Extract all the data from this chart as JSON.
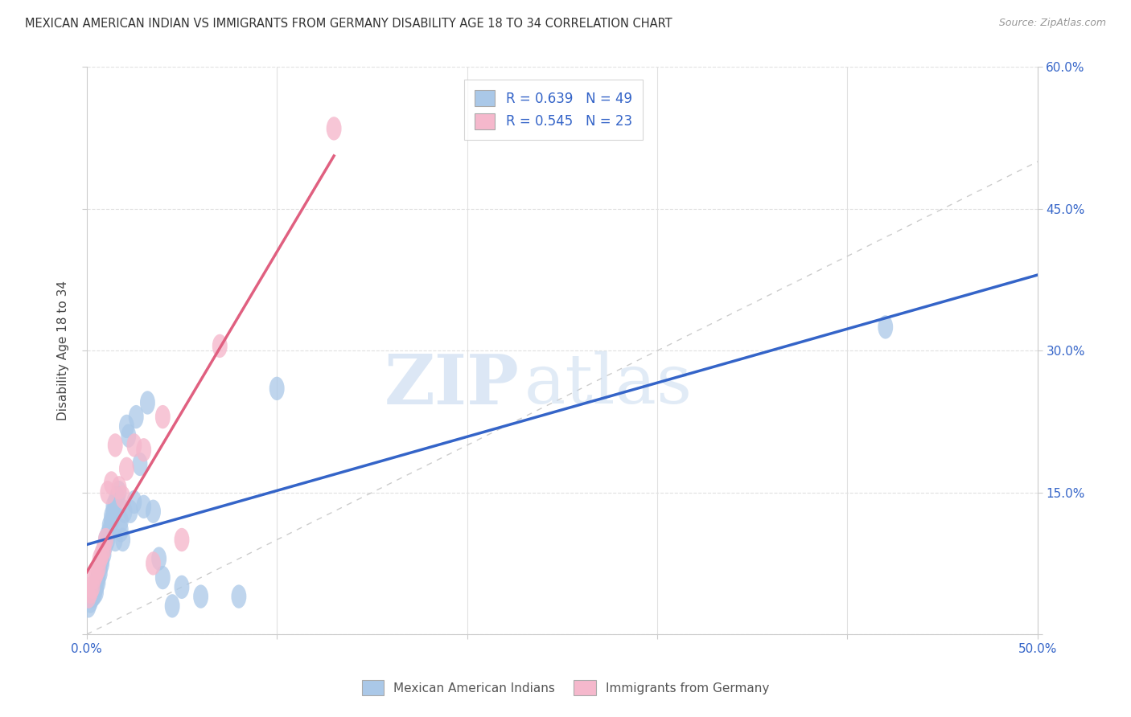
{
  "title": "MEXICAN AMERICAN INDIAN VS IMMIGRANTS FROM GERMANY DISABILITY AGE 18 TO 34 CORRELATION CHART",
  "source": "Source: ZipAtlas.com",
  "ylabel": "Disability Age 18 to 34",
  "xlim": [
    0.0,
    0.5
  ],
  "ylim": [
    0.0,
    0.6
  ],
  "xticks": [
    0.0,
    0.1,
    0.2,
    0.3,
    0.4,
    0.5
  ],
  "xticklabels": [
    "0.0%",
    "",
    "",
    "",
    "",
    "50.0%"
  ],
  "yticks": [
    0.0,
    0.15,
    0.3,
    0.45,
    0.6
  ],
  "yticklabels": [
    "",
    "15.0%",
    "30.0%",
    "45.0%",
    "60.0%"
  ],
  "blue_R": 0.639,
  "blue_N": 49,
  "pink_R": 0.545,
  "pink_N": 23,
  "blue_color": "#aac8e8",
  "pink_color": "#f5b8cc",
  "blue_line_color": "#3464c8",
  "pink_line_color": "#e06080",
  "ref_line_color": "#c8c8c8",
  "legend_label_blue": "Mexican American Indians",
  "legend_label_pink": "Immigrants from Germany",
  "blue_scatter_x": [
    0.001,
    0.002,
    0.003,
    0.004,
    0.005,
    0.005,
    0.006,
    0.006,
    0.007,
    0.007,
    0.008,
    0.008,
    0.009,
    0.009,
    0.01,
    0.01,
    0.011,
    0.011,
    0.012,
    0.012,
    0.013,
    0.013,
    0.014,
    0.014,
    0.015,
    0.015,
    0.016,
    0.017,
    0.018,
    0.018,
    0.019,
    0.02,
    0.021,
    0.022,
    0.023,
    0.025,
    0.026,
    0.028,
    0.03,
    0.032,
    0.035,
    0.038,
    0.04,
    0.045,
    0.05,
    0.06,
    0.08,
    0.1,
    0.42
  ],
  "blue_scatter_y": [
    0.03,
    0.035,
    0.04,
    0.042,
    0.045,
    0.05,
    0.055,
    0.06,
    0.065,
    0.07,
    0.075,
    0.08,
    0.085,
    0.09,
    0.095,
    0.1,
    0.1,
    0.105,
    0.11,
    0.115,
    0.12,
    0.125,
    0.13,
    0.135,
    0.14,
    0.1,
    0.145,
    0.15,
    0.11,
    0.12,
    0.1,
    0.13,
    0.22,
    0.21,
    0.13,
    0.14,
    0.23,
    0.18,
    0.135,
    0.245,
    0.13,
    0.08,
    0.06,
    0.03,
    0.05,
    0.04,
    0.04,
    0.26,
    0.325
  ],
  "pink_scatter_x": [
    0.001,
    0.002,
    0.003,
    0.004,
    0.005,
    0.006,
    0.007,
    0.008,
    0.009,
    0.01,
    0.011,
    0.013,
    0.015,
    0.017,
    0.019,
    0.021,
    0.025,
    0.03,
    0.035,
    0.04,
    0.05,
    0.07,
    0.13
  ],
  "pink_scatter_y": [
    0.04,
    0.045,
    0.05,
    0.06,
    0.065,
    0.07,
    0.08,
    0.085,
    0.09,
    0.1,
    0.15,
    0.16,
    0.2,
    0.155,
    0.145,
    0.175,
    0.2,
    0.195,
    0.075,
    0.23,
    0.1,
    0.305,
    0.535
  ],
  "watermark_zip": "ZIP",
  "watermark_atlas": "atlas",
  "background_color": "#ffffff",
  "grid_color": "#e0e0e0"
}
